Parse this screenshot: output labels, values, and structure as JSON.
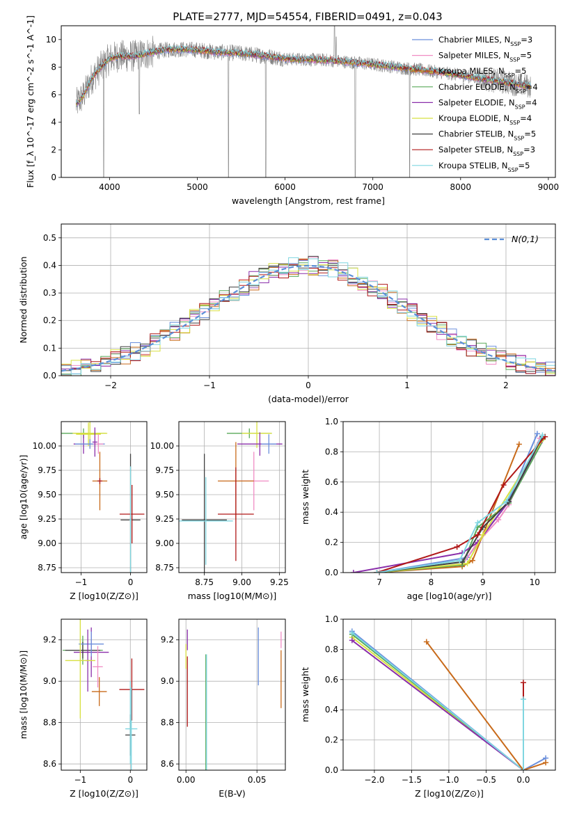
{
  "figure": {
    "title": "PLATE=2777, MJD=54554, FIBERID=0491, z=0.043"
  },
  "series": [
    {
      "name": "Chabrier MILES, N_SSP=3",
      "color": "#6b8fdc"
    },
    {
      "name": "Salpeter MILES, N_SSP=5",
      "color": "#f08cc4"
    },
    {
      "name": "Kroupa MILES, N_SSP=5",
      "color": "#c86a1a"
    },
    {
      "name": "Chabrier ELODIE, N_SSP=4",
      "color": "#58a858"
    },
    {
      "name": "Salpeter ELODIE, N_SSP=4",
      "color": "#8a2eaa"
    },
    {
      "name": "Kroupa ELODIE, N_SSP=4",
      "color": "#d8e040"
    },
    {
      "name": "Chabrier STELIB, N_SSP=5",
      "color": "#404040"
    },
    {
      "name": "Salpeter STELIB, N_SSP=3",
      "color": "#b01818"
    },
    {
      "name": "Kroupa STELIB, N_SSP=5",
      "color": "#7fd6e0"
    }
  ],
  "chart_data": [
    {
      "id": "spectrum",
      "type": "line",
      "title": "PLATE=2777, MJD=54554, FIBERID=0491, z=0.043",
      "xlabel": "wavelength [Angstrom, rest frame]",
      "ylabel": "Flux [f_λ 10^-17 erg cm^-2 s^-1 A^-1]",
      "xlim": [
        3450,
        9080
      ],
      "ylim": [
        0,
        11
      ],
      "xticks": [
        4000,
        5000,
        6000,
        7000,
        8000,
        9000
      ],
      "yticks": [
        0,
        2,
        4,
        6,
        8,
        10
      ],
      "grid": false,
      "legend": "top-right",
      "data_line_color": "#808080",
      "continuum": [
        [
          3620,
          5.3
        ],
        [
          3700,
          5.9
        ],
        [
          3800,
          7.2
        ],
        [
          3900,
          8.0
        ],
        [
          4000,
          8.6
        ],
        [
          4100,
          8.8
        ],
        [
          4300,
          8.8
        ],
        [
          4500,
          9.1
        ],
        [
          4700,
          9.3
        ],
        [
          5000,
          9.25
        ],
        [
          5200,
          9.1
        ],
        [
          5500,
          9.0
        ],
        [
          5800,
          8.8
        ],
        [
          6000,
          8.6
        ],
        [
          6500,
          8.5
        ],
        [
          7000,
          8.2
        ],
        [
          7400,
          7.9
        ],
        [
          7800,
          7.6
        ],
        [
          8200,
          7.2
        ],
        [
          8500,
          6.9
        ],
        [
          8800,
          6.6
        ]
      ],
      "absorption_lines": [
        [
          3933,
          0
        ],
        [
          4340,
          4.6
        ],
        [
          5355,
          0
        ],
        [
          5780,
          0
        ],
        [
          6800,
          0
        ],
        [
          7420,
          0
        ]
      ],
      "emission_lines": [
        [
          6563,
          11.0
        ],
        [
          6583,
          10.2
        ]
      ]
    },
    {
      "id": "residuals",
      "type": "line",
      "xlabel": "(data-model)/error",
      "ylabel": "Normed distribution",
      "xlim": [
        -2.5,
        2.5
      ],
      "ylim": [
        0,
        0.55
      ],
      "xticks": [
        -2,
        -1,
        0,
        1,
        2
      ],
      "yticks": [
        0.0,
        0.1,
        0.2,
        0.3,
        0.4,
        0.5
      ],
      "grid": true,
      "legend": "top-right",
      "legend_label": "N(0,1)",
      "reference_curve": {
        "name": "N(0,1)",
        "mean": 0,
        "sigma": 1,
        "color": "#5b8fd8"
      },
      "bin_width": 0.1
    },
    {
      "id": "age-vs-Z",
      "type": "scatter",
      "xlabel": "Z [log10(Z/Z⊙)]",
      "ylabel": "age [log10(age/yr)]",
      "xlim": [
        -1.4,
        0.33
      ],
      "ylim": [
        8.7,
        10.25
      ],
      "xticks": [
        -1,
        0
      ],
      "yticks": [
        8.75,
        9.0,
        9.25,
        9.5,
        9.75,
        10.0
      ],
      "grid": true,
      "points": [
        {
          "s": 3,
          "x": -0.95,
          "y": 10.13,
          "xerr": 0.45,
          "yerr": 0.05
        },
        {
          "s": 5,
          "x": -0.82,
          "y": 10.13,
          "xerr": 0.35,
          "yerr": 0.15
        },
        {
          "s": 4,
          "x": -0.95,
          "y": 10.02,
          "xerr": 0.2,
          "yerr": 0.1
        },
        {
          "s": 5,
          "x": -0.85,
          "y": 10.12,
          "xerr": 0.25,
          "yerr": 0.12
        },
        {
          "s": 0,
          "x": -0.82,
          "y": 10.02,
          "xerr": 0.3,
          "yerr": 0.05
        },
        {
          "s": 1,
          "x": -0.65,
          "y": 10.02,
          "xerr": 0.1,
          "yerr": 0.1
        },
        {
          "s": 4,
          "x": -0.72,
          "y": 10.04,
          "xerr": 0.05,
          "yerr": 0.15
        },
        {
          "s": 2,
          "x": -0.62,
          "y": 9.64,
          "xerr": 0.15,
          "yerr": 0.3
        },
        {
          "s": 7,
          "x": -0.62,
          "y": 9.64,
          "xerr": 0.05,
          "yerr": 0.03
        },
        {
          "s": 6,
          "x": 0.0,
          "y": 9.24,
          "xerr": 0.2,
          "yerr": 0.68
        },
        {
          "s": 7,
          "x": 0.03,
          "y": 9.3,
          "xerr": 0.25,
          "yerr": 0.3
        },
        {
          "s": 8,
          "x": 0.0,
          "y": 9.24,
          "xerr": 0.02,
          "yerr": 0.55
        }
      ]
    },
    {
      "id": "age-vs-mass",
      "type": "scatter",
      "xlabel": "mass [log10(M/M⊙)]",
      "ylabel": "",
      "xlim": [
        8.58,
        9.29
      ],
      "ylim": [
        8.7,
        10.25
      ],
      "xticks": [
        8.75,
        9.0,
        9.25
      ],
      "yticks": [
        8.75,
        9.0,
        9.25,
        9.5,
        9.75,
        10.0
      ],
      "grid": true,
      "points": [
        {
          "s": 3,
          "x": 9.05,
          "y": 10.13,
          "xerr": 0.15,
          "yerr": 0.05
        },
        {
          "s": 5,
          "x": 9.1,
          "y": 10.13,
          "xerr": 0.1,
          "yerr": 0.15
        },
        {
          "s": 4,
          "x": 9.12,
          "y": 10.02,
          "xerr": 0.15,
          "yerr": 0.12
        },
        {
          "s": 0,
          "x": 9.18,
          "y": 10.02,
          "xerr": 0.05,
          "yerr": 0.1
        },
        {
          "s": 1,
          "x": 9.08,
          "y": 9.64,
          "xerr": 0.1,
          "yerr": 0.3
        },
        {
          "s": 2,
          "x": 8.96,
          "y": 9.64,
          "xerr": 0.12,
          "yerr": 0.4
        },
        {
          "s": 6,
          "x": 8.75,
          "y": 9.24,
          "xerr": 0.15,
          "yerr": 0.68
        },
        {
          "s": 7,
          "x": 8.96,
          "y": 9.3,
          "xerr": 0.12,
          "yerr": 0.48
        },
        {
          "s": 8,
          "x": 8.76,
          "y": 9.23,
          "xerr": 0.18,
          "yerr": 0.45
        }
      ]
    },
    {
      "id": "massweight-vs-age",
      "type": "line",
      "xlabel": "age [log10(age/yr)]",
      "ylabel": "mass weight",
      "xlim": [
        6.3,
        10.4
      ],
      "ylim": [
        0,
        1.0
      ],
      "xticks": [
        7,
        8,
        9,
        10
      ],
      "yticks": [
        0.0,
        0.2,
        0.4,
        0.6,
        0.8,
        1.0
      ],
      "grid": true,
      "series": [
        {
          "s": 0,
          "x": [
            6.95,
            8.7,
            9.5,
            10.05
          ],
          "y": [
            0.0,
            0.1,
            0.48,
            0.92
          ]
        },
        {
          "s": 1,
          "x": [
            6.95,
            8.6,
            8.9,
            9.3,
            9.5,
            10.1
          ],
          "y": [
            0.0,
            0.05,
            0.2,
            0.35,
            0.45,
            0.89
          ]
        },
        {
          "s": 2,
          "x": [
            6.95,
            8.6,
            8.8,
            9.7
          ],
          "y": [
            0.0,
            0.04,
            0.08,
            0.85
          ]
        },
        {
          "s": 3,
          "x": [
            6.95,
            8.6,
            8.9,
            9.5,
            10.2
          ],
          "y": [
            0.0,
            0.05,
            0.3,
            0.46,
            0.9
          ]
        },
        {
          "s": 4,
          "x": [
            6.5,
            8.6,
            8.9,
            9.5,
            10.1
          ],
          "y": [
            0.0,
            0.13,
            0.2,
            0.47,
            0.86
          ]
        },
        {
          "s": 5,
          "x": [
            6.95,
            8.7,
            9.0,
            10.15
          ],
          "y": [
            0.0,
            0.06,
            0.25,
            0.88
          ]
        },
        {
          "s": 6,
          "x": [
            6.95,
            8.6,
            9.0,
            9.5,
            10.15
          ],
          "y": [
            0.0,
            0.07,
            0.3,
            0.47,
            0.9
          ]
        },
        {
          "s": 7,
          "x": [
            6.95,
            8.5,
            8.9,
            9.4,
            10.2
          ],
          "y": [
            0.0,
            0.17,
            0.25,
            0.58,
            0.9
          ]
        },
        {
          "s": 8,
          "x": [
            6.95,
            8.55,
            8.9,
            9.45,
            10.15
          ],
          "y": [
            0.0,
            0.08,
            0.33,
            0.47,
            0.91
          ]
        }
      ]
    },
    {
      "id": "mass-vs-Z",
      "type": "scatter",
      "xlabel": "Z [log10(Z/Z⊙)]",
      "ylabel": "mass [log10(M/M⊙)]",
      "xlim": [
        -1.38,
        0.33
      ],
      "ylim": [
        8.57,
        9.3
      ],
      "xticks": [
        -1,
        0
      ],
      "yticks": [
        8.6,
        8.8,
        9.0,
        9.2
      ],
      "grid": true,
      "points": [
        {
          "s": 3,
          "x": -0.95,
          "y": 9.15,
          "xerr": 0.4,
          "yerr": 0.07
        },
        {
          "s": 4,
          "x": -0.78,
          "y": 9.14,
          "xerr": 0.35,
          "yerr": 0.12
        },
        {
          "s": 6,
          "x": -0.95,
          "y": 9.15,
          "xerr": 0.35,
          "yerr": 0.04
        },
        {
          "s": 0,
          "x": -0.78,
          "y": 9.18,
          "xerr": 0.25,
          "yerr": 0.06
        },
        {
          "s": 4,
          "x": -0.85,
          "y": 9.1,
          "xerr": 0.05,
          "yerr": 0.15
        },
        {
          "s": 5,
          "x": -1.0,
          "y": 9.1,
          "xerr": 0.3,
          "yerr": 0.28
        },
        {
          "s": 1,
          "x": -0.65,
          "y": 9.07,
          "xerr": 0.1,
          "yerr": 0.1
        },
        {
          "s": 2,
          "x": -0.62,
          "y": 8.95,
          "xerr": 0.15,
          "yerr": 0.07
        },
        {
          "s": 7,
          "x": 0.03,
          "y": 8.96,
          "xerr": 0.25,
          "yerr": 0.15
        },
        {
          "s": 6,
          "x": 0.0,
          "y": 8.74,
          "xerr": 0.1,
          "yerr": 0.1
        },
        {
          "s": 8,
          "x": 0.02,
          "y": 8.77,
          "xerr": 0.12,
          "yerr": 0.2
        },
        {
          "s": 8,
          "x": 0.0,
          "y": 8.8,
          "xerr": 0.02,
          "yerr": 0.2
        }
      ]
    },
    {
      "id": "mass-vs-EBV",
      "type": "scatter",
      "xlabel": "E(B-V)",
      "ylabel": "",
      "xlim": [
        -0.005,
        0.07
      ],
      "ylim": [
        8.57,
        9.3
      ],
      "xticks": [
        0.0,
        0.05
      ],
      "yticks": [
        8.6,
        8.8,
        9.0,
        9.2
      ],
      "grid": true,
      "points": [
        {
          "s": 4,
          "x": 0.001,
          "y": 9.2,
          "xerr": 0,
          "yerr": 0.05
        },
        {
          "s": 5,
          "x": 0.0,
          "y": 9.12,
          "xerr": 0,
          "yerr": 0.06
        },
        {
          "s": 7,
          "x": 0.001,
          "y": 8.95,
          "xerr": 0,
          "yerr": 0.17
        },
        {
          "s": 3,
          "x": 0.014,
          "y": 8.85,
          "xerr": 0,
          "yerr": 0.28
        },
        {
          "s": 8,
          "x": 0.0145,
          "y": 8.85,
          "xerr": 0,
          "yerr": 0.28
        },
        {
          "s": 0,
          "x": 0.051,
          "y": 9.12,
          "xerr": 0,
          "yerr": 0.14
        },
        {
          "s": 1,
          "x": 0.067,
          "y": 9.2,
          "xerr": 0,
          "yerr": 0.04
        },
        {
          "s": 2,
          "x": 0.067,
          "y": 9.01,
          "xerr": 0,
          "yerr": 0.14
        }
      ]
    },
    {
      "id": "massweight-vs-Z",
      "type": "line",
      "xlabel": "Z [log10(Z/Z⊙)]",
      "ylabel": "mass weight",
      "xlim": [
        -2.42,
        0.43
      ],
      "ylim": [
        0,
        1.0
      ],
      "xticks": [
        -2.0,
        -1.5,
        -1.0,
        -0.5,
        0.0
      ],
      "yticks": [
        0.0,
        0.2,
        0.4,
        0.6,
        0.8,
        1.0
      ],
      "grid": true,
      "series": [
        {
          "s": 0,
          "x": [
            -2.3,
            0.0,
            0.3
          ],
          "y": [
            0.92,
            0.0,
            0.08
          ]
        },
        {
          "s": 5,
          "x": [
            -2.3,
            0.0
          ],
          "y": [
            0.88,
            0.0
          ]
        },
        {
          "s": 3,
          "x": [
            -2.3,
            0.0
          ],
          "y": [
            0.9,
            0.0
          ]
        },
        {
          "s": 4,
          "x": [
            -2.3,
            0.0
          ],
          "y": [
            0.86,
            0.0
          ]
        },
        {
          "s": 8,
          "x": [
            -2.3,
            0.0
          ],
          "y": [
            0.91,
            0.0
          ]
        },
        {
          "s": 2,
          "x": [
            -1.3,
            0.0,
            0.3
          ],
          "y": [
            0.85,
            0.0,
            0.05
          ]
        },
        {
          "s": 7,
          "x": [
            0.0,
            0.0
          ],
          "y": [
            0.0,
            0.58
          ]
        },
        {
          "s": 8,
          "x": [
            0.0,
            0.0
          ],
          "y": [
            0.0,
            0.47
          ]
        }
      ]
    }
  ]
}
